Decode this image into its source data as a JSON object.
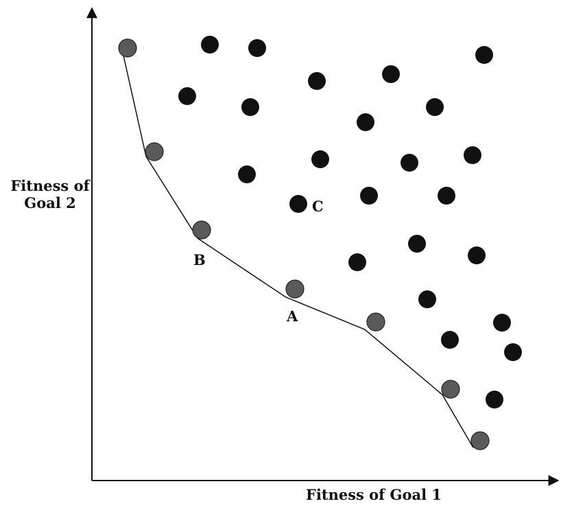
{
  "axes": {
    "xlabel": "Fitness of Goal 1",
    "ylabel_line1": "Fitness of",
    "ylabel_line2": "Goal 2"
  },
  "colors": {
    "axis": "#111111",
    "front_point": "#5a5a5a",
    "dominated_point": "#111111",
    "front_line": "#111111"
  },
  "pareto_front": [
    {
      "id": "f1"
    },
    {
      "id": "f2"
    },
    {
      "id": "f3",
      "label": "B"
    },
    {
      "id": "f4",
      "label": "A"
    },
    {
      "id": "f5"
    },
    {
      "id": "f6"
    },
    {
      "id": "f7"
    }
  ],
  "dominated": [
    {
      "id": "d-c",
      "label": "C"
    }
  ]
}
